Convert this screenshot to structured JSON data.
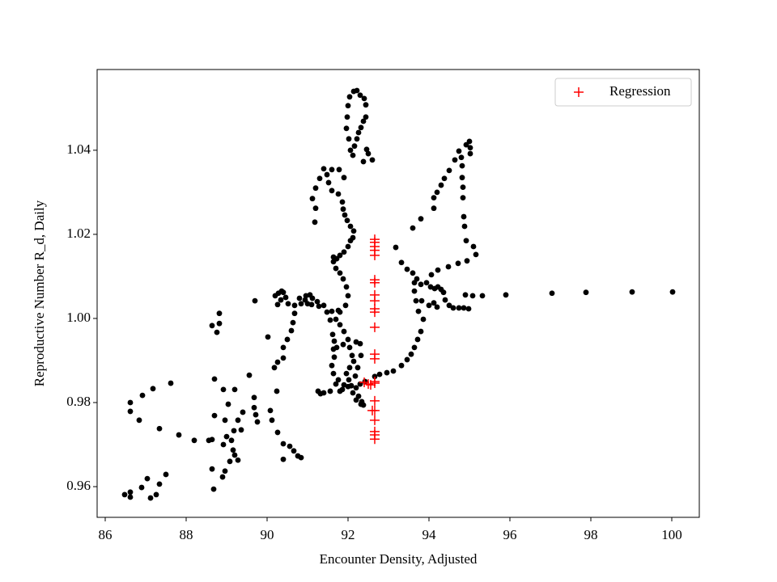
{
  "chart_data": {
    "type": "scatter",
    "xlabel": "Encounter Density, Adjusted",
    "ylabel": "Reproductive Number R_d, Daily",
    "xlim": [
      85.8,
      100.68
    ],
    "ylim": [
      0.9527,
      1.0592
    ],
    "xticks": [
      86,
      88,
      90,
      92,
      94,
      96,
      98,
      100
    ],
    "yticks": [
      0.96,
      0.98,
      {
        "value": 1,
        "label": "1.00"
      },
      1.02,
      1.04
    ],
    "legend": "upper right",
    "series": [
      {
        "color": "#000000",
        "marker": "o",
        "x": [
          86.48,
          86.62,
          86.62,
          86.9,
          87.04,
          87.12,
          87.26,
          87.34,
          87.5,
          86.62,
          86.62,
          86.84,
          86.92,
          87.18,
          87.62,
          87.34,
          87.82,
          88.2,
          88.56,
          88.64,
          88.7,
          88.7,
          88.82,
          88.82,
          88.64,
          88.76,
          88.64,
          88.68,
          88.9,
          88.96,
          89.08,
          89.2,
          89.28,
          89.16,
          89.12,
          89.18,
          89.0,
          88.92,
          88.96,
          88.92,
          89.2,
          89.04,
          89.28,
          89.36,
          89.4,
          89.56,
          89.68,
          89.68,
          89.72,
          89.76,
          89.7,
          90.02,
          90.08,
          90.12,
          90.24,
          90.26,
          90.4,
          90.4,
          90.56,
          90.66,
          90.76,
          90.84,
          90.18,
          90.26,
          90.4,
          90.4,
          90.5,
          90.6,
          90.64,
          90.68,
          90.84,
          90.8,
          90.94,
          91.06,
          91.12,
          91.24,
          91.1,
          90.2,
          90.28,
          90.36,
          90.4,
          90.46,
          90.34,
          90.26,
          90.52,
          90.68,
          91.0,
          90.96,
          91.28,
          91.4,
          91.48,
          91.6,
          91.76,
          91.56,
          91.62,
          91.66,
          91.64,
          91.66,
          91.6,
          91.64,
          91.7,
          91.8,
          91.32,
          91.26,
          91.4,
          91.56,
          91.86,
          91.9,
          92.0,
          92.12,
          92.26,
          92.34,
          92.38,
          92.2,
          92.3,
          92.42,
          92.66,
          92.78,
          92.96,
          93.12,
          93.32,
          93.46,
          93.56,
          93.64,
          93.72,
          93.8,
          93.86,
          93.74,
          93.68,
          93.64,
          93.64,
          93.7,
          93.8,
          93.94,
          94.04,
          94.14,
          94.22,
          94.3,
          94.36,
          94.4,
          94.5,
          94.6,
          94.74,
          94.86,
          94.98,
          93.82,
          94.0,
          94.12,
          94.2,
          94.9,
          95.08,
          95.32,
          95.9,
          97.04,
          97.88,
          99.02,
          100.02,
          94.06,
          94.22,
          94.48,
          94.72,
          94.94,
          95.16,
          95.1,
          94.92,
          94.88,
          94.86,
          94.84,
          94.84,
          94.82,
          94.82,
          94.8,
          94.92,
          95.0,
          95.02,
          95.02,
          94.74,
          94.64,
          94.5,
          94.38,
          94.3,
          94.2,
          94.12,
          94.12,
          93.8,
          93.6,
          93.18,
          93.32,
          93.46,
          93.6,
          91.7,
          91.8,
          91.9,
          92.0,
          92.04,
          92.1,
          92.14,
          92.04,
          91.96,
          92.02,
          92.08,
          92.2,
          92.32,
          91.76,
          91.72,
          91.88,
          92.2,
          92.3,
          92.32,
          92.24,
          92.18,
          91.8,
          91.94,
          92.0,
          91.96,
          91.88,
          91.8,
          91.7,
          91.64,
          91.64,
          91.8,
          91.9,
          92.0,
          92.06,
          92.12,
          92.14,
          92.06,
          91.98,
          91.92,
          91.88,
          91.86,
          91.76,
          91.6,
          91.52,
          91.48,
          91.4,
          91.3,
          91.2,
          91.12,
          91.2,
          91.18,
          91.6,
          91.78,
          91.9,
          91.72,
          92.06,
          92.02,
          91.96,
          91.98,
          92.0,
          92.04,
          92.14,
          92.22,
          92.3,
          92.4,
          92.44,
          92.44,
          92.38,
          92.32,
          92.26,
          92.22,
          92.16,
          92.12,
          92.38,
          92.5,
          92.46,
          92.6
        ],
        "values": [
          0.9581,
          0.9587,
          0.9575,
          0.9598,
          0.9619,
          0.9573,
          0.9581,
          0.9606,
          0.9629,
          0.9779,
          0.98,
          0.9758,
          0.9817,
          0.9833,
          0.9846,
          0.9738,
          0.9723,
          0.971,
          0.971,
          0.9712,
          0.9769,
          0.9856,
          0.9988,
          1.0012,
          0.9983,
          0.9967,
          0.9642,
          0.9594,
          0.9623,
          0.9637,
          0.966,
          0.9675,
          0.9663,
          0.9687,
          0.971,
          0.9733,
          0.9719,
          0.97,
          0.9758,
          0.9831,
          0.9831,
          0.9796,
          0.9758,
          0.9735,
          0.9777,
          0.9865,
          0.9812,
          0.9788,
          0.9771,
          0.9754,
          1.0042,
          0.9956,
          0.9781,
          0.9758,
          0.9827,
          0.9729,
          0.9702,
          0.9665,
          0.9696,
          0.9685,
          0.9673,
          0.9669,
          0.9883,
          0.9896,
          0.9906,
          0.9931,
          0.995,
          0.9971,
          0.999,
          1.0012,
          1.0035,
          1.0048,
          1.0044,
          1.0056,
          1.0048,
          1.004,
          1.0033,
          1.0054,
          1.006,
          1.0065,
          1.0062,
          1.005,
          1.0044,
          1.0033,
          1.0035,
          1.0031,
          1.0035,
          1.0054,
          1.0029,
          1.0031,
          1.0015,
          1.0017,
          1.0019,
          0.9996,
          0.9962,
          0.9946,
          0.9927,
          0.9908,
          0.9888,
          0.9869,
          0.9844,
          0.9827,
          0.9821,
          0.9827,
          0.9823,
          0.9827,
          0.9831,
          0.9842,
          0.9838,
          0.9823,
          0.9815,
          0.9802,
          0.9794,
          0.9835,
          0.9844,
          0.985,
          0.9862,
          0.9867,
          0.9871,
          0.9875,
          0.9888,
          0.9902,
          0.9915,
          0.9931,
          0.995,
          0.9969,
          0.9998,
          1.0017,
          1.0042,
          1.0065,
          1.0085,
          1.0094,
          1.0081,
          1.0085,
          1.0075,
          1.0071,
          1.0075,
          1.0069,
          1.0062,
          1.0044,
          1.0031,
          1.0025,
          1.0025,
          1.0025,
          1.0023,
          1.0042,
          1.0031,
          1.0037,
          1.0027,
          1.0056,
          1.0054,
          1.0054,
          1.0056,
          1.006,
          1.0062,
          1.0063,
          1.0063,
          1.0104,
          1.0115,
          1.0123,
          1.0131,
          1.0137,
          1.0152,
          1.0171,
          1.0185,
          1.0219,
          1.0242,
          1.0287,
          1.0312,
          1.0335,
          1.0363,
          1.0383,
          1.0413,
          1.0421,
          1.0406,
          1.0392,
          1.0398,
          1.0377,
          1.0352,
          1.0333,
          1.0317,
          1.03,
          1.0287,
          1.0262,
          1.0237,
          1.0215,
          1.0169,
          1.0133,
          1.0117,
          1.0108,
          0.9998,
          0.9985,
          0.9969,
          0.995,
          0.9931,
          0.9912,
          0.9898,
          0.9883,
          0.9869,
          0.9854,
          0.984,
          0.9806,
          0.9796,
          0.9854,
          0.9931,
          0.9938,
          0.9944,
          0.994,
          0.9912,
          0.9883,
          0.9863,
          1.0015,
          1.0031,
          1.0054,
          1.0075,
          1.0094,
          1.0108,
          1.0119,
          1.0135,
          1.0146,
          1.015,
          1.0158,
          1.0171,
          1.0185,
          1.0192,
          1.0208,
          1.0219,
          1.0233,
          1.0246,
          1.026,
          1.0277,
          1.0296,
          1.0304,
          1.0323,
          1.0342,
          1.0356,
          1.0333,
          1.031,
          1.0285,
          1.0262,
          1.0229,
          1.0354,
          1.0354,
          1.0335,
          1.0142,
          1.04,
          1.0427,
          1.0452,
          1.0479,
          1.0506,
          1.0527,
          1.054,
          1.0542,
          1.0531,
          1.0523,
          1.0508,
          1.0479,
          1.0469,
          1.0454,
          1.0442,
          1.0427,
          1.041,
          1.0388,
          1.0373,
          1.0392,
          1.0402,
          1.0377
        ]
      },
      {
        "name": "Regression",
        "color": "#ff0000",
        "marker": "+",
        "x": [
          92.66,
          92.66,
          92.66,
          92.66,
          92.66,
          92.66,
          92.66,
          92.66,
          92.66,
          92.66,
          92.66,
          92.66,
          92.66,
          92.66,
          92.66,
          92.66,
          92.66,
          92.66,
          92.66,
          92.66,
          92.66,
          92.66,
          92.4,
          92.5,
          92.56,
          92.6
        ],
        "values": [
          1.0188,
          1.0181,
          1.0171,
          1.0162,
          1.015,
          1.0092,
          1.0085,
          1.0056,
          1.0042,
          1.0023,
          1.0015,
          0.9979,
          0.9915,
          0.9904,
          0.985,
          0.9846,
          0.9804,
          0.9781,
          0.9758,
          0.9731,
          0.9723,
          0.9713,
          0.9848,
          0.9844,
          0.9842,
          0.9781
        ]
      }
    ]
  }
}
